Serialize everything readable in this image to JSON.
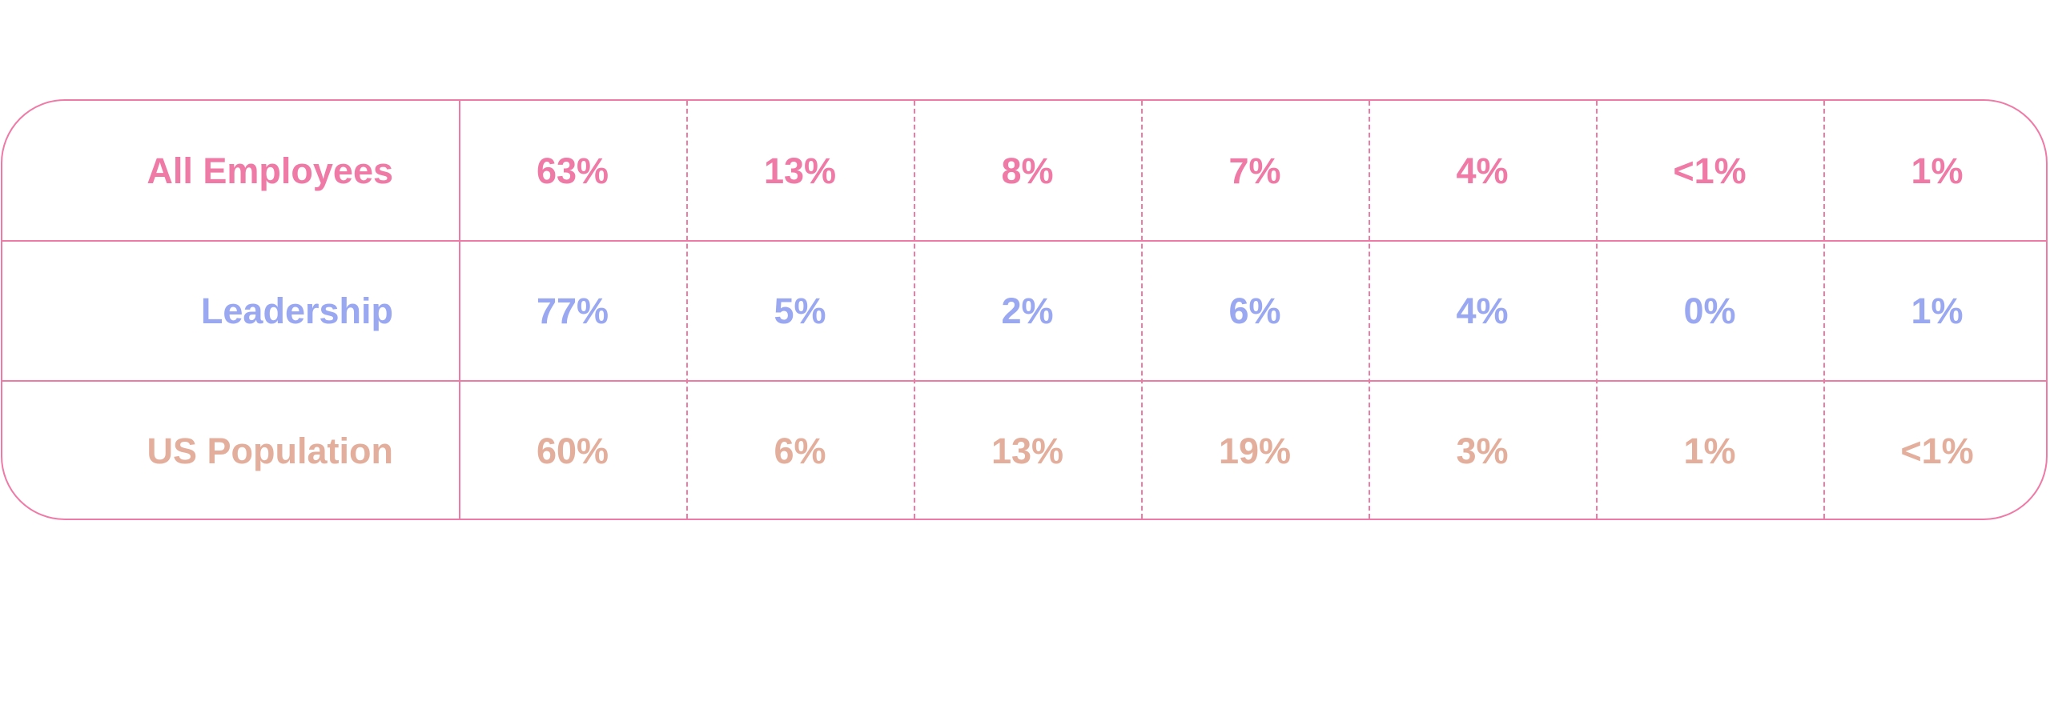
{
  "chart_data": {
    "type": "table",
    "title": "",
    "rows": [
      {
        "name": "All Employees",
        "color": "#ef7aa6",
        "values": [
          "63%",
          "13%",
          "8%",
          "7%",
          "4%",
          "<1%",
          "1%"
        ]
      },
      {
        "name": "Leadership",
        "color": "#9aa8f2",
        "values": [
          "77%",
          "5%",
          "2%",
          "6%",
          "4%",
          "0%",
          "1%"
        ]
      },
      {
        "name": "US Population",
        "color": "#e3ae9c",
        "values": [
          "60%",
          "6%",
          "13%",
          "19%",
          "3%",
          "1%",
          "<1%"
        ]
      }
    ],
    "grid_color": "#ef7aa6"
  }
}
